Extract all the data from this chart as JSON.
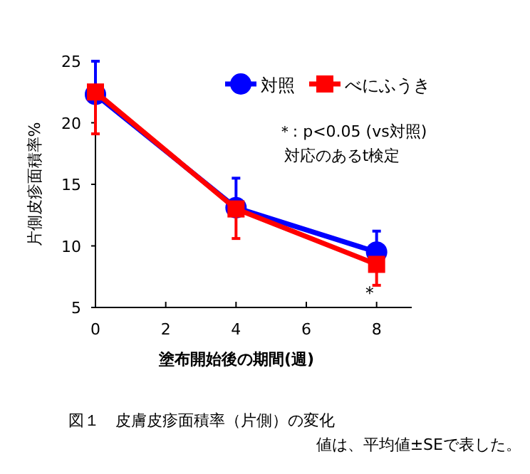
{
  "chart_data": {
    "type": "line",
    "xlabel": "塗布開始後の期間(週)",
    "ylabel": "片側皮疹面積率%",
    "x": [
      0,
      4,
      8
    ],
    "xlim": [
      0,
      9
    ],
    "xticks": [
      0,
      2,
      4,
      6,
      8
    ],
    "ylim": [
      5,
      25
    ],
    "yticks": [
      5,
      10,
      15,
      20,
      25
    ],
    "series": [
      {
        "name": "対照",
        "color": "#0000ff",
        "marker": "circle",
        "values": [
          22.3,
          13.1,
          9.5
        ],
        "errors": [
          [
            22.3,
            25.0
          ],
          [
            13.1,
            15.5
          ],
          [
            9.5,
            11.2
          ]
        ]
      },
      {
        "name": "べにふうき",
        "color": "#ff0000",
        "marker": "square",
        "values": [
          22.5,
          13.0,
          8.5
        ],
        "errors": [
          [
            19.1,
            22.5
          ],
          [
            10.6,
            13.0
          ],
          [
            6.8,
            8.5
          ]
        ]
      }
    ],
    "legend": "top right",
    "grid": false,
    "annotations": [
      {
        "text": "＊",
        "x": 7.8,
        "y": 6.3
      },
      "＊: p<0.05 (vs対照)",
      "対応のあるt検定",
      "図１　皮膚皮疹面積率（片側）の変化",
      "値は、平均値±SEで表した。"
    ]
  }
}
